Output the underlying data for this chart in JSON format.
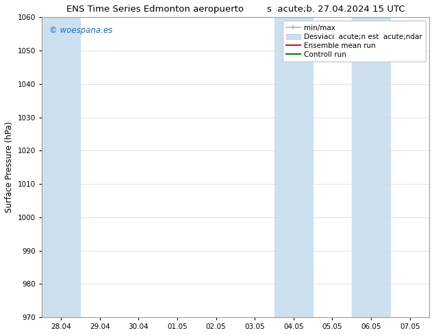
{
  "title_left": "ENS Time Series Edmonton aeropuerto",
  "title_right": "s  acute;b. 27.04.2024 15 UTC",
  "ylabel": "Surface Pressure (hPa)",
  "ylim": [
    970,
    1060
  ],
  "yticks": [
    970,
    980,
    990,
    1000,
    1010,
    1020,
    1030,
    1040,
    1050,
    1060
  ],
  "xtick_labels": [
    "28.04",
    "29.04",
    "30.04",
    "01.05",
    "02.05",
    "03.05",
    "04.05",
    "05.05",
    "06.05",
    "07.05"
  ],
  "bg_color": "#ffffff",
  "plot_bg_color": "#ffffff",
  "shaded_bands": [
    {
      "xstart": 0,
      "xend": 1,
      "color": "#cde0f0"
    },
    {
      "xstart": 6,
      "xend": 7,
      "color": "#cde0f0"
    },
    {
      "xstart": 8,
      "xend": 9,
      "color": "#cde0f0"
    }
  ],
  "watermark_text": "© woespana.es",
  "watermark_color": "#1e6bbf",
  "legend_label_minmax": "min/max",
  "legend_label_std": "Desviaci  acute;n est  acute;ndar",
  "legend_label_ensemble": "Ensemble mean run",
  "legend_label_control": "Controll run",
  "legend_color_minmax": "#b0b0b0",
  "legend_color_std": "#cde0f0",
  "legend_color_ensemble": "#ff0000",
  "legend_color_control": "#008000",
  "title_fontsize": 9.5,
  "tick_fontsize": 7.5,
  "legend_fontsize": 7.5,
  "ylabel_fontsize": 8.5,
  "watermark_fontsize": 8.5
}
